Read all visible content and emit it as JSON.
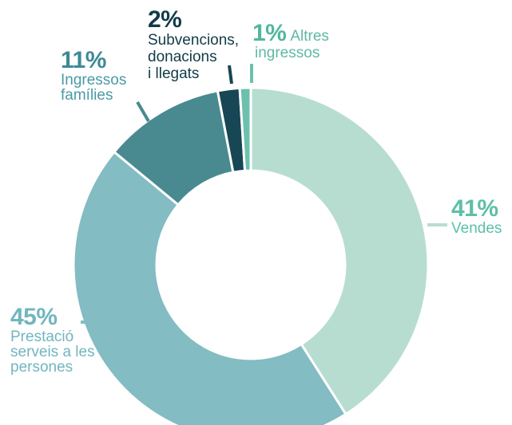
{
  "chart_data": {
    "type": "pie",
    "style": "donut",
    "slices": [
      {
        "name": "Vendes",
        "value": 41,
        "label_pct": "41%",
        "label_lines": [
          "Vendes"
        ],
        "color": "#b7ddd0"
      },
      {
        "name": "Prestació serveis a les persones",
        "value": 45,
        "label_pct": "45%",
        "label_lines": [
          "Prestació",
          "serveis a les",
          "persones"
        ],
        "color": "#83bcc3"
      },
      {
        "name": "Ingressos famílies",
        "value": 11,
        "label_pct": "11%",
        "label_lines": [
          "Ingressos",
          "famílies"
        ],
        "color": "#498a91"
      },
      {
        "name": "Subvencions, donacions i llegats",
        "value": 2,
        "label_pct": "2%",
        "label_lines": [
          "Subvencions,",
          "donacions",
          "i llegats"
        ],
        "color": "#174654"
      },
      {
        "name": "Altres ingressos",
        "value": 1,
        "label_pct": "1%",
        "label_lines": [
          "Altres",
          "ingressos"
        ],
        "color": "#6cc0ad"
      }
    ]
  }
}
